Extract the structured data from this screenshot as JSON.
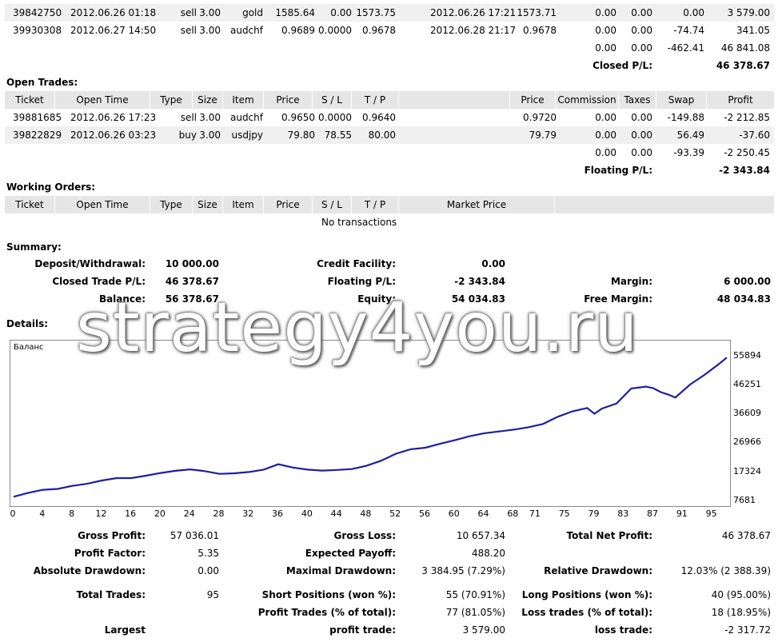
{
  "closed_rows": [
    {
      "ticket": "39842750",
      "open_time": "2012.06.26 01:18",
      "type": "sell",
      "size": "3.00",
      "item": "gold",
      "price": "1585.64",
      "sl": "0.00",
      "tp": "1573.75",
      "close_time": "2012.06.26 17:21",
      "close_price": "1573.71",
      "commission": "0.00",
      "taxes": "0.00",
      "swap": "0.00",
      "profit": "3 579.00"
    },
    {
      "ticket": "39930308",
      "open_time": "2012.06.27 14:50",
      "type": "sell",
      "size": "3.00",
      "item": "audchf",
      "price": "0.9689",
      "sl": "0.0000",
      "tp": "0.9678",
      "close_time": "2012.06.28 21:17",
      "close_price": "0.9678",
      "commission": "0.00",
      "taxes": "0.00",
      "swap": "-74.74",
      "profit": "341.05"
    }
  ],
  "closed_totals": {
    "commission": "0.00",
    "taxes": "0.00",
    "swap": "-462.41",
    "profit": "46 841.08"
  },
  "closed_pl": {
    "label": "Closed P/L:",
    "value": "46 378.67"
  },
  "open_trades": {
    "title": "Open Trades:",
    "headers": {
      "ticket": "Ticket",
      "open_time": "Open Time",
      "type": "Type",
      "size": "Size",
      "item": "Item",
      "price": "Price",
      "sl": "S / L",
      "tp": "T / P",
      "price2": "Price",
      "commission": "Commission",
      "taxes": "Taxes",
      "swap": "Swap",
      "profit": "Profit"
    },
    "rows": [
      {
        "ticket": "39881685",
        "open_time": "2012.06.26 17:23",
        "type": "sell",
        "size": "3.00",
        "item": "audchf",
        "price": "0.9650",
        "sl": "0.0000",
        "tp": "0.9640",
        "price2": "0.9720",
        "commission": "0.00",
        "taxes": "0.00",
        "swap": "-149.88",
        "profit": "-2 212.85"
      },
      {
        "ticket": "39822829",
        "open_time": "2012.06.26 03:23",
        "type": "buy",
        "size": "3.00",
        "item": "usdjpy",
        "price": "79.80",
        "sl": "78.55",
        "tp": "80.00",
        "price2": "79.79",
        "commission": "0.00",
        "taxes": "0.00",
        "swap": "56.49",
        "profit": "-37.60"
      }
    ],
    "totals": {
      "commission": "0.00",
      "taxes": "0.00",
      "swap": "-93.39",
      "profit": "-2 250.45"
    },
    "floating_label": "Floating P/L:",
    "floating_value": "-2 343.84"
  },
  "working_orders": {
    "title": "Working Orders:",
    "headers": {
      "ticket": "Ticket",
      "open_time": "Open Time",
      "type": "Type",
      "size": "Size",
      "item": "Item",
      "price": "Price",
      "sl": "S / L",
      "tp": "T / P",
      "market_price": "Market Price"
    },
    "empty_text": "No transactions"
  },
  "summary": {
    "title": "Summary:",
    "deposit_label": "Deposit/Withdrawal:",
    "deposit_value": "10 000.00",
    "credit_label": "Credit Facility:",
    "credit_value": "0.00",
    "closed_trade_label": "Closed Trade P/L:",
    "closed_trade_value": "46 378.67",
    "floating_label": "Floating P/L:",
    "floating_value": "-2 343.84",
    "margin_label": "Margin:",
    "margin_value": "6 000.00",
    "balance_label": "Balance:",
    "balance_value": "56 378.67",
    "equity_label": "Equity:",
    "equity_value": "54 034.83",
    "free_margin_label": "Free Margin:",
    "free_margin_value": "48 034.83"
  },
  "details": {
    "title": "Details:"
  },
  "watermark": "strategy4you.ru",
  "chart_data": {
    "type": "line",
    "legend": "Баланс",
    "line_color": "#1f1fa0",
    "x_ticks": [
      "0",
      "4",
      "8",
      "12",
      "16",
      "20",
      "24",
      "28",
      "32",
      "36",
      "40",
      "44",
      "48",
      "52",
      "56",
      "60",
      "64",
      "68",
      "71",
      "75",
      "79",
      "83",
      "87",
      "91",
      "95"
    ],
    "y_ticks": [
      "55894",
      "46251",
      "36609",
      "26966",
      "17324",
      "7681"
    ],
    "xlim": [
      0,
      97
    ],
    "ylim": [
      7681,
      59000
    ],
    "x": [
      0,
      2,
      4,
      6,
      8,
      10,
      12,
      14,
      16,
      18,
      20,
      22,
      24,
      26,
      28,
      30,
      32,
      34,
      36,
      38,
      40,
      42,
      44,
      46,
      48,
      50,
      52,
      54,
      56,
      58,
      60,
      62,
      64,
      66,
      68,
      70,
      72,
      74,
      76,
      78,
      79,
      80,
      82,
      84,
      86,
      87,
      88,
      89,
      90,
      92,
      94,
      96,
      97
    ],
    "y": [
      9200,
      10500,
      11500,
      11800,
      12800,
      13500,
      14600,
      15400,
      15400,
      16200,
      17100,
      17800,
      18300,
      17700,
      16800,
      17000,
      17400,
      18200,
      20000,
      18900,
      18200,
      17900,
      18100,
      18400,
      19500,
      21200,
      23500,
      25000,
      25500,
      26800,
      28000,
      29300,
      30300,
      30900,
      31500,
      32300,
      33400,
      35800,
      37600,
      38700,
      36800,
      38500,
      40200,
      45200,
      45800,
      45300,
      44000,
      43200,
      42200,
      46500,
      49800,
      53500,
      55500
    ]
  }
}
